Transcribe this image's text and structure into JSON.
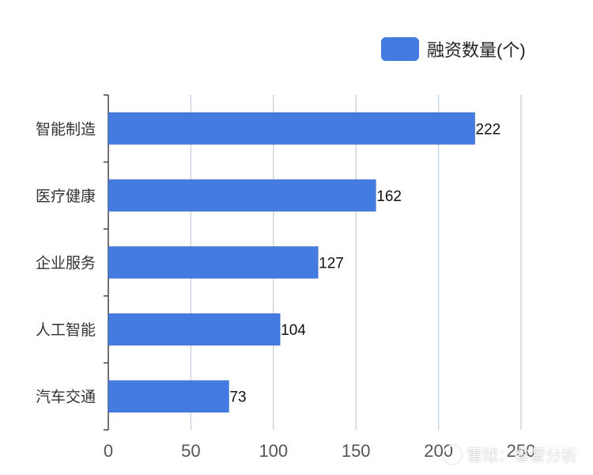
{
  "legend": {
    "label": "融资数量(个)",
    "color": "#437BE0"
  },
  "watermark": "雪球：睿督分析",
  "chart_data": {
    "type": "bar",
    "orientation": "horizontal",
    "categories": [
      "智能制造",
      "医疗健康",
      "企业服务",
      "人工智能",
      "汽车交通"
    ],
    "series": [
      {
        "name": "融资数量(个)",
        "values": [
          222,
          162,
          127,
          104,
          73
        ],
        "color": "#437BE0"
      }
    ],
    "xlim": [
      0,
      250
    ],
    "xticks": [
      "0",
      "50",
      "100",
      "150",
      "200",
      "250"
    ],
    "grid": true,
    "legend_position": "top-right",
    "data_labels": true
  }
}
